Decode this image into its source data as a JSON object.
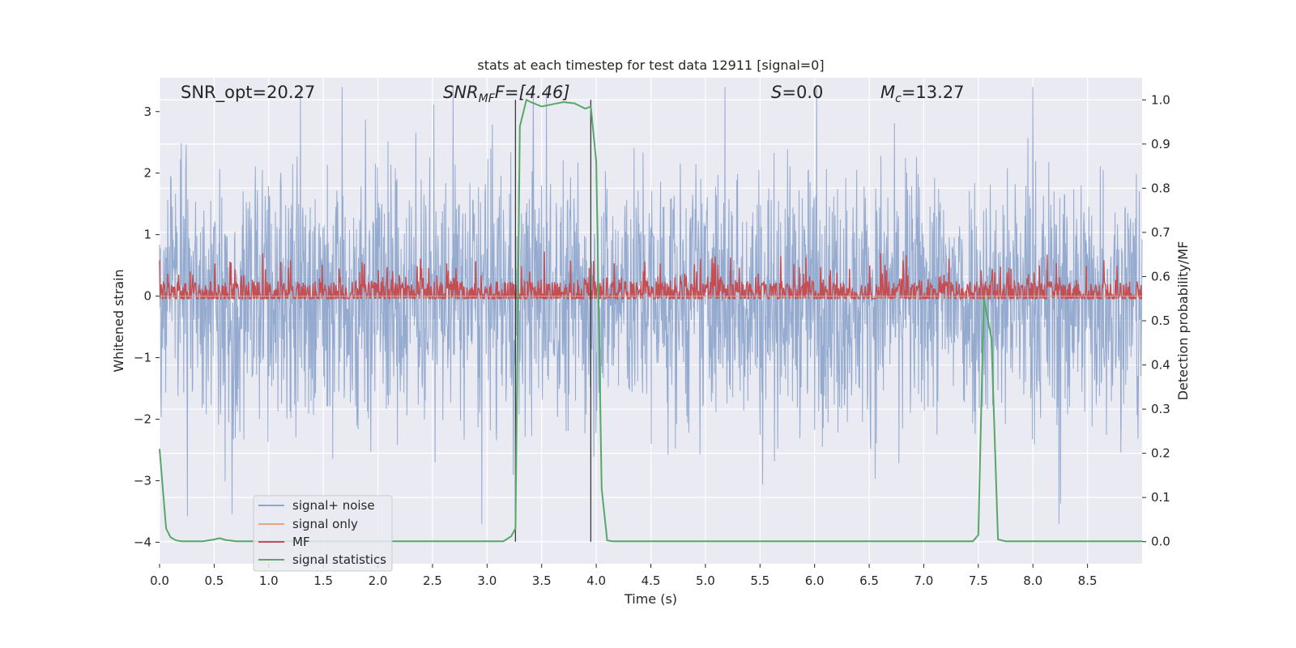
{
  "chart_data": {
    "type": "line",
    "title": "stats at each timestep for test data 12911 [signal=0]",
    "xlabel": "Time (s)",
    "ylabel_left": "Whitened strain",
    "ylabel_right": "Detection probability/MF",
    "xlim": [
      0.0,
      9.0
    ],
    "ylim_left": [
      -4.35,
      3.55
    ],
    "ylim_right": [
      -0.05,
      1.05
    ],
    "x_ticks": [
      "0.0",
      "0.5",
      "1.0",
      "1.5",
      "2.0",
      "2.5",
      "3.0",
      "3.5",
      "4.0",
      "4.5",
      "5.0",
      "5.5",
      "6.0",
      "6.5",
      "7.0",
      "7.5",
      "8.0",
      "8.5"
    ],
    "y_ticks_left": [
      "3",
      "2",
      "1",
      "0",
      "−1",
      "−2",
      "−3",
      "−4"
    ],
    "y_ticks_right": [
      "1.0",
      "0.9",
      "0.8",
      "0.7",
      "0.6",
      "0.5",
      "0.4",
      "0.3",
      "0.2",
      "0.1",
      "0.0"
    ],
    "grid": true,
    "legend_position": "lower-left",
    "annotations": {
      "snr_opt": "SNR_opt=20.27",
      "snr_mf_main": "SNR",
      "snr_mf_sub": "MF",
      "snr_mf_rest": "F=[4.46]",
      "s_main": "S",
      "s_rest": "=0.0",
      "mc_main": "M",
      "mc_sub": "c",
      "mc_rest": "=13.27"
    },
    "series": [
      {
        "name": "signal+ noise",
        "color": "#8fa6cc",
        "style": "dense noise, approx. ±2.5 whitened strain"
      },
      {
        "name": "signal only",
        "color": "#e8a489",
        "style": "flat near zero"
      },
      {
        "name": "MF",
        "color": "#c44e52",
        "style": "dense band between approx. 0 and 0.8"
      },
      {
        "name": "signal statistics",
        "color": "#55a868",
        "axis": "right",
        "x": [
          0.0,
          0.03,
          0.06,
          0.1,
          0.15,
          0.2,
          0.3,
          0.4,
          0.5,
          0.55,
          0.6,
          0.7,
          0.8,
          0.9,
          1.0,
          1.5,
          2.0,
          2.5,
          3.0,
          3.15,
          3.22,
          3.26,
          3.3,
          3.36,
          3.4,
          3.5,
          3.6,
          3.7,
          3.8,
          3.9,
          3.95,
          4.0,
          4.05,
          4.1,
          4.15,
          4.2,
          4.5,
          5.0,
          6.0,
          7.0,
          7.45,
          7.5,
          7.55,
          7.62,
          7.68,
          7.75,
          8.0,
          8.5,
          9.0
        ],
        "y": [
          0.21,
          0.12,
          0.03,
          0.01,
          0.003,
          0.001,
          0.001,
          0.001,
          0.005,
          0.008,
          0.004,
          0.001,
          0.001,
          0.001,
          0.001,
          0.001,
          0.001,
          0.001,
          0.001,
          0.001,
          0.012,
          0.03,
          0.94,
          1.0,
          0.995,
          0.985,
          0.99,
          0.995,
          0.992,
          0.98,
          0.985,
          0.86,
          0.12,
          0.003,
          0.001,
          0.001,
          0.001,
          0.001,
          0.001,
          0.001,
          0.001,
          0.015,
          0.55,
          0.46,
          0.005,
          0.001,
          0.001,
          0.001,
          0.001
        ]
      }
    ],
    "vertical_lines_x": [
      3.26,
      3.95
    ]
  }
}
